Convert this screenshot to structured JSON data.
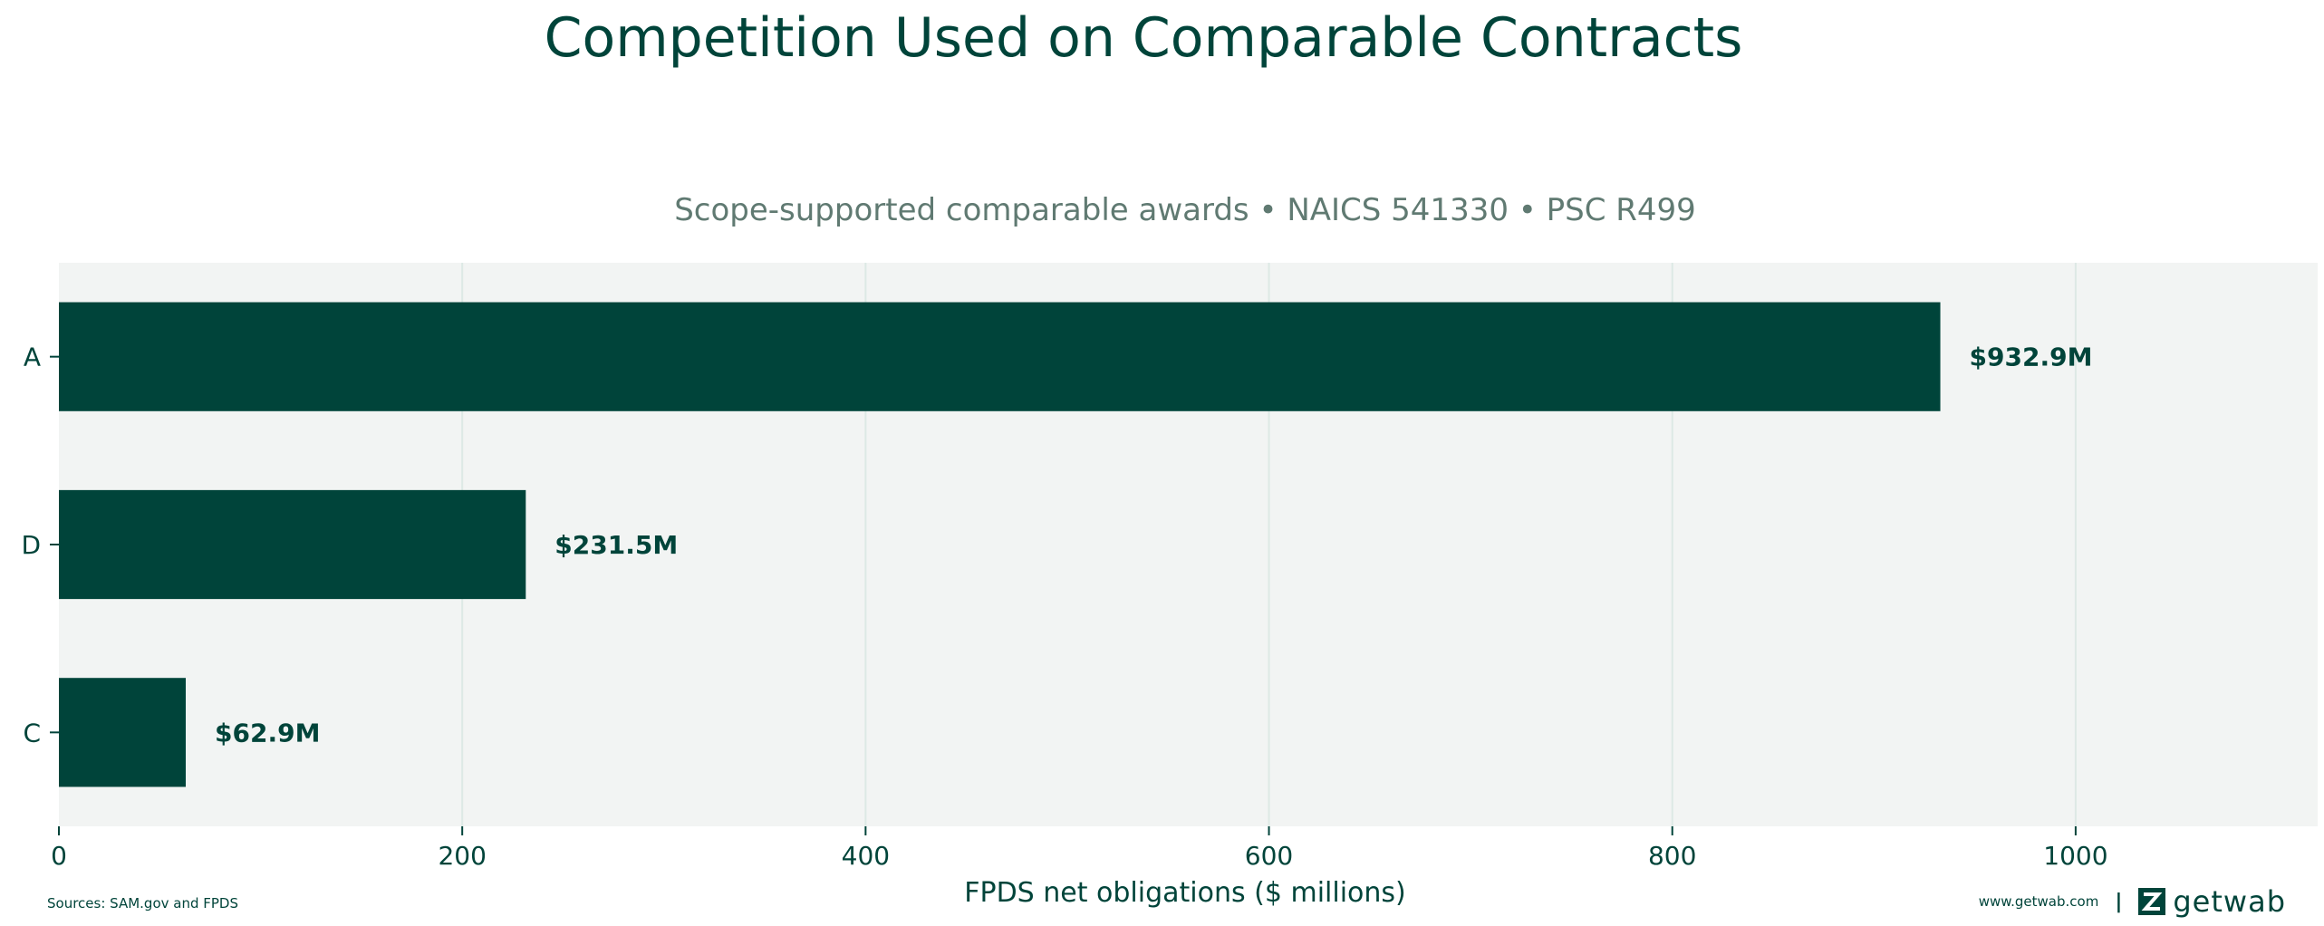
{
  "colors": {
    "bar": "#00443a",
    "plot_bg": "#f2f4f3",
    "grid": "#dde9e5",
    "title": "#00443a",
    "subtitle": "#607a72",
    "text": "#00443a"
  },
  "chart_data": {
    "type": "bar",
    "orientation": "horizontal",
    "title": "Competition Used on Comparable Contracts",
    "subtitle": "Scope-supported comparable awards • NAICS 541330 • PSC R499",
    "xlabel": "FPDS net obligations ($ millions)",
    "ylabel": "",
    "categories": [
      "A",
      "D",
      "C"
    ],
    "values": [
      932.9,
      231.5,
      62.9
    ],
    "data_labels": [
      "$932.9M",
      "$231.5M",
      "$62.9M"
    ],
    "xlim": [
      0,
      1120
    ],
    "xticks": [
      0,
      200,
      400,
      600,
      800,
      1000
    ],
    "grid": "vertical",
    "legend": "none"
  },
  "footer": {
    "sources": "Sources: SAM.gov and FPDS",
    "website": "www.getwab.com",
    "separator": "|",
    "brand": "getwab",
    "brand_icon": "getwab-logo-icon"
  }
}
